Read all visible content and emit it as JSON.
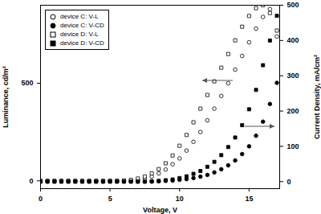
{
  "chart_data": {
    "type": "scatter",
    "xlabel": "Voltage, V",
    "ylabel": "Luminance, cd/m²",
    "y2label": "Current Density, mA/cm²",
    "xlim": [
      0,
      17.2
    ],
    "xticks": [
      0,
      5,
      10,
      15
    ],
    "ylim": [
      -40,
      900
    ],
    "yticks": [
      0,
      500
    ],
    "y2lim": [
      -20,
      500
    ],
    "y2ticks": [
      0,
      100,
      200,
      300,
      400,
      500
    ],
    "legend": "top-left",
    "grid": false,
    "x": [
      0,
      0.5,
      1,
      1.5,
      2,
      2.5,
      3,
      3.5,
      4,
      4.5,
      5,
      5.5,
      6,
      6.5,
      7,
      7.5,
      8,
      8.5,
      9,
      9.5,
      10,
      10.5,
      11,
      11.5,
      12,
      12.5,
      13,
      13.5,
      14,
      14.5,
      15,
      15.5,
      16,
      16.5,
      17
    ],
    "series": [
      {
        "name": "device C: V-L",
        "color": "#000000",
        "marker": "open_circle",
        "values": [
          0,
          0,
          0,
          0,
          0,
          0,
          0,
          0,
          0,
          0,
          0,
          0,
          0,
          2,
          5,
          12,
          22,
          38,
          58,
          85,
          115,
          155,
          200,
          250,
          310,
          370,
          435,
          500,
          570,
          640,
          710,
          780,
          840,
          880,
          740
        ]
      },
      {
        "name": "device C: V-CD",
        "color": "#000000",
        "marker": "circle",
        "axis": "y2",
        "values": [
          0,
          0,
          0,
          0,
          0,
          0,
          0,
          0,
          0,
          0,
          0,
          0,
          0,
          0,
          0,
          0,
          0,
          1,
          2,
          3,
          5,
          7,
          10,
          14,
          19,
          26,
          35,
          46,
          60,
          78,
          100,
          130,
          170,
          220,
          280
        ]
      },
      {
        "name": "device D: V-L",
        "color": "#000000",
        "marker": "open_square",
        "values": [
          0,
          0,
          0,
          0,
          0,
          0,
          0,
          0,
          0,
          0,
          0,
          0,
          2,
          5,
          12,
          22,
          38,
          60,
          90,
          130,
          180,
          235,
          300,
          370,
          440,
          510,
          580,
          650,
          720,
          790,
          845,
          885,
          900,
          860,
          770
        ]
      },
      {
        "name": "device D: V-CD",
        "color": "#000000",
        "marker": "square",
        "axis": "y2",
        "values": [
          0,
          0,
          0,
          0,
          0,
          0,
          0,
          0,
          0,
          0,
          0,
          0,
          0,
          0,
          0,
          0,
          1,
          2,
          4,
          6,
          10,
          15,
          22,
          30,
          42,
          56,
          75,
          98,
          125,
          160,
          205,
          260,
          330,
          400,
          470
        ]
      }
    ]
  }
}
